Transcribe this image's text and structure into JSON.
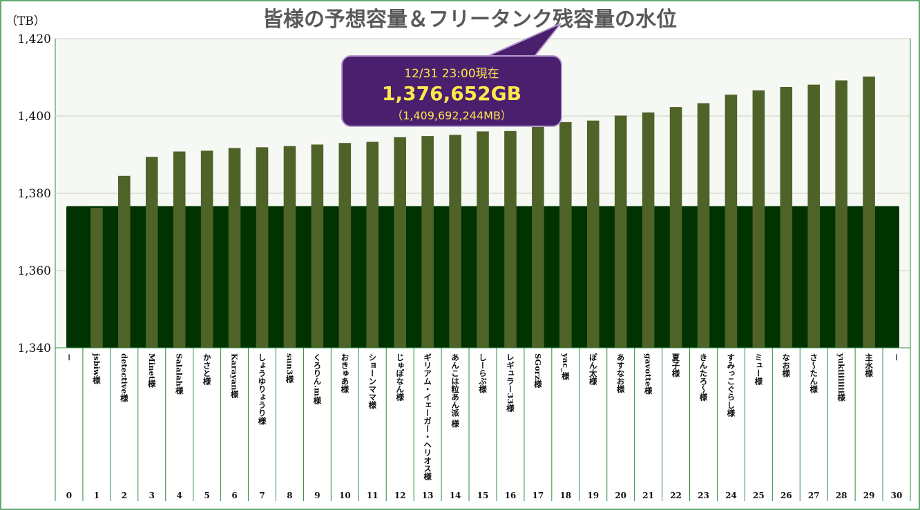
{
  "chart_data": {
    "type": "bar",
    "title": "皆様の予想容量＆フリータンク残容量の水位",
    "yunit": "（TB）",
    "ylim": [
      1340,
      1420
    ],
    "yticks": [
      1340,
      1360,
      1380,
      1400,
      1420
    ],
    "ytick_labels": [
      "1,340",
      "1,360",
      "1,380",
      "1,400",
      "1,420"
    ],
    "grid": true,
    "categories": [
      "－",
      "jsbiw様",
      "detective様",
      "Minet様",
      "Salalah様",
      "かさと様",
      "Karayan様",
      "しょうゆりょうり様",
      "sun3様",
      "くろりん.m様",
      "おきゅあ様",
      "ショーンママ様",
      "じゅぽなん様",
      "ギリアム・イェーガー・ヘリオス様",
      "あんこは粒あん派 様",
      "しーらぶ様",
      "レギュラー33様",
      "SGorz様",
      "yac_様",
      "ぽん太様",
      "あすなお様",
      "gavotte様",
      "夏子様",
      "きんたろ～様",
      "すみっこぐらし様",
      "ミュー様",
      "なお様",
      "さ～たん様",
      "yukiiiiiiii様",
      "主水様",
      "－"
    ],
    "indices": [
      "0",
      "1",
      "2",
      "3",
      "4",
      "5",
      "6",
      "7",
      "8",
      "9",
      "10",
      "11",
      "12",
      "13",
      "14",
      "15",
      "16",
      "17",
      "18",
      "19",
      "20",
      "21",
      "22",
      "23",
      "24",
      "25",
      "26",
      "27",
      "28",
      "29",
      "30"
    ],
    "series": [
      {
        "values": [
          null,
          1376.2,
          1384.5,
          1389.4,
          1390.8,
          1391.0,
          1391.7,
          1391.9,
          1392.2,
          1392.6,
          1393.0,
          1393.3,
          1394.5,
          1394.8,
          1395.1,
          1396.0,
          1396.1,
          1397.6,
          1398.4,
          1398.8,
          1400.1,
          1400.9,
          1402.3,
          1403.3,
          1405.5,
          1406.6,
          1407.5,
          1408.1,
          1409.2,
          1410.2,
          null
        ],
        "color": "#4f6228"
      }
    ],
    "water_level": 1376.652,
    "water_color": "#003300",
    "annotation": {
      "line1": "12/31 23:00現在",
      "line2": "1,376,652GB",
      "line3": "（1,409,692,244MB）"
    }
  }
}
